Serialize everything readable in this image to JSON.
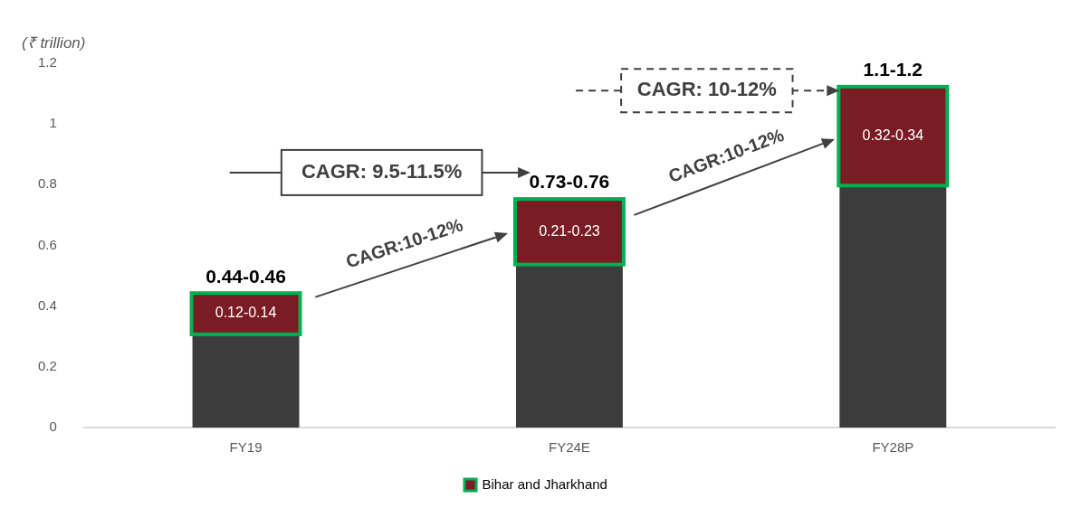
{
  "chart_data": {
    "type": "bar",
    "stacked": true,
    "ylabel": "(₹ trillion)",
    "categories": [
      "FY19",
      "FY24E",
      "FY28P"
    ],
    "series": [
      {
        "color": "#3c3c3c",
        "values": [
          0.31,
          0.54,
          0.8
        ]
      },
      {
        "name": "Bihar and Jharkhand",
        "color": "#7a1c24",
        "values": [
          0.13,
          0.21,
          0.32
        ],
        "value_labels": [
          "0.12-0.14",
          "0.21-0.23",
          "0.32-0.34"
        ]
      }
    ],
    "totals": [
      "0.44-0.46",
      "0.73-0.76",
      "1.1-1.2"
    ],
    "ylim": [
      0,
      1.2
    ],
    "yticks": [
      0,
      0.2,
      0.4,
      0.6,
      0.8,
      1,
      1.2
    ],
    "grid": false,
    "legend": "bottom",
    "annotations": [
      "CAGR: 9.5-11.5%",
      "CAGR:10-12%",
      "CAGR: 10-12%",
      "CAGR:10-12%"
    ]
  }
}
